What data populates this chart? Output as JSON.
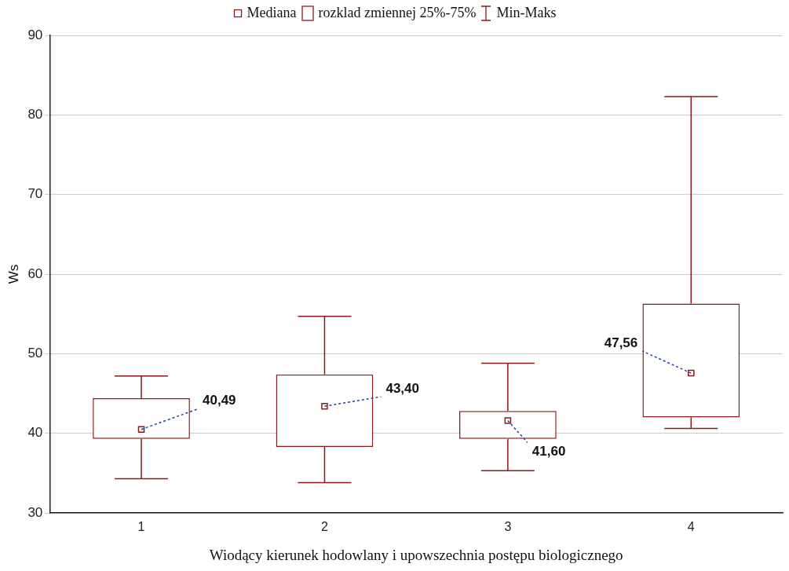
{
  "chart_data": {
    "type": "box",
    "xlabel": "Wiodący kierunek hodowlany i upowszechnia postępu biologicznego",
    "ylabel": "Ws",
    "categories": [
      "1",
      "2",
      "3",
      "4"
    ],
    "boxes": [
      {
        "low": 34.3,
        "q1": 39.3,
        "median": 40.49,
        "q3": 44.4,
        "high": 47.2
      },
      {
        "low": 33.8,
        "q1": 38.3,
        "median": 43.4,
        "q3": 47.4,
        "high": 54.7
      },
      {
        "low": 35.3,
        "q1": 39.3,
        "median": 41.6,
        "q3": 42.8,
        "high": 48.8
      },
      {
        "low": 40.6,
        "q1": 42.0,
        "median": 47.56,
        "q3": 56.3,
        "high": 82.3
      }
    ],
    "color": "#8b1a1a",
    "ylim": [
      30,
      90
    ],
    "yticks": [
      30,
      40,
      50,
      60,
      70,
      80,
      90
    ],
    "grid": "y",
    "marker": "square",
    "annotations": [
      "Mediana",
      "rozklad zmiennej 25%-75%",
      "Min-Maks",
      {
        "text": "40,49",
        "x": "1",
        "y": 40.49
      },
      {
        "text": "43,40",
        "x": "2",
        "y": 43.4
      },
      {
        "text": "41,60",
        "x": "3",
        "y": 41.6
      },
      {
        "text": "47,56",
        "x": "4",
        "y": 47.56
      }
    ]
  }
}
